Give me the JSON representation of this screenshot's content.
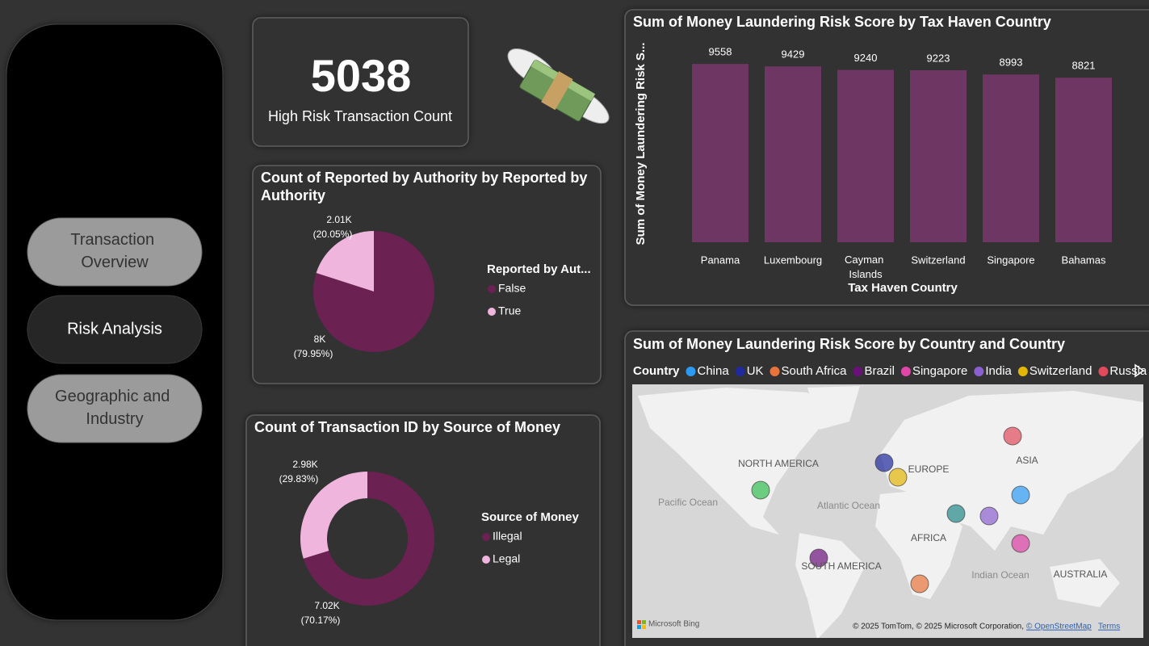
{
  "nav": {
    "buttons": [
      "Transaction Overview",
      "Risk Analysis",
      "Geographic and Industry"
    ]
  },
  "kpi": {
    "value": 5038,
    "label": "High Risk Transaction Count"
  },
  "chart_data": [
    {
      "type": "pie",
      "title": "Count of Reported by Authority by Reported by Authority",
      "legend_title": "Reported by Aut...",
      "categories": [
        "False",
        "True"
      ],
      "values": [
        7995,
        2005
      ],
      "value_labels": [
        "8K",
        "2.01K"
      ],
      "percent_labels": [
        "(79.95%)",
        "(20.05%)"
      ],
      "colors": [
        "#6B2152",
        "#F0B5DC"
      ]
    },
    {
      "type": "donut",
      "title": "Count of Transaction ID by Source of Money",
      "legend_title": "Source of Money",
      "categories": [
        "Illegal",
        "Legal"
      ],
      "values": [
        7017,
        2983
      ],
      "value_labels": [
        "7.02K",
        "2.98K"
      ],
      "percent_labels": [
        "(70.17%)",
        "(29.83%)"
      ],
      "colors": [
        "#6B2152",
        "#F0B5DC"
      ]
    },
    {
      "type": "bar",
      "title": "Sum of Money Laundering Risk Score by Tax Haven Country",
      "x_label": "Tax Haven Country",
      "y_label": "Sum of Money Laundering Risk S...",
      "categories": [
        "Panama",
        "Luxembourg",
        "Cayman Islands",
        "Switzerland",
        "Singapore",
        "Bahamas"
      ],
      "values": [
        9558,
        9429,
        9240,
        9223,
        8993,
        8821
      ],
      "color": "#6E3763",
      "ylim": [
        0,
        10000
      ]
    },
    {
      "type": "map",
      "title": "Sum of Money Laundering Risk Score by Country and Country",
      "legend_title": "Country",
      "series": [
        {
          "name": "China",
          "color": "#2B9AF3"
        },
        {
          "name": "UK",
          "color": "#1F2A9E"
        },
        {
          "name": "South Africa",
          "color": "#E8743B"
        },
        {
          "name": "Brazil",
          "color": "#6B0F7B"
        },
        {
          "name": "Singapore",
          "color": "#E045A8"
        },
        {
          "name": "India",
          "color": "#8A5FCF"
        },
        {
          "name": "Switzerland",
          "color": "#E3B505"
        },
        {
          "name": "Russia",
          "color": "#E04A5A"
        }
      ],
      "region_labels": [
        "NORTH AMERICA",
        "EUROPE",
        "ASIA",
        "AFRICA",
        "SOUTH AMERICA",
        "AUSTRALIA"
      ],
      "ocean_labels": [
        "Pacific Ocean",
        "Atlantic Ocean",
        "Indian Ocean"
      ],
      "provider": "Microsoft Bing",
      "attribution": "© 2025 TomTom, © 2025 Microsoft Corporation,",
      "attribution_link": "© OpenStreetMap",
      "terms": "Terms"
    }
  ]
}
